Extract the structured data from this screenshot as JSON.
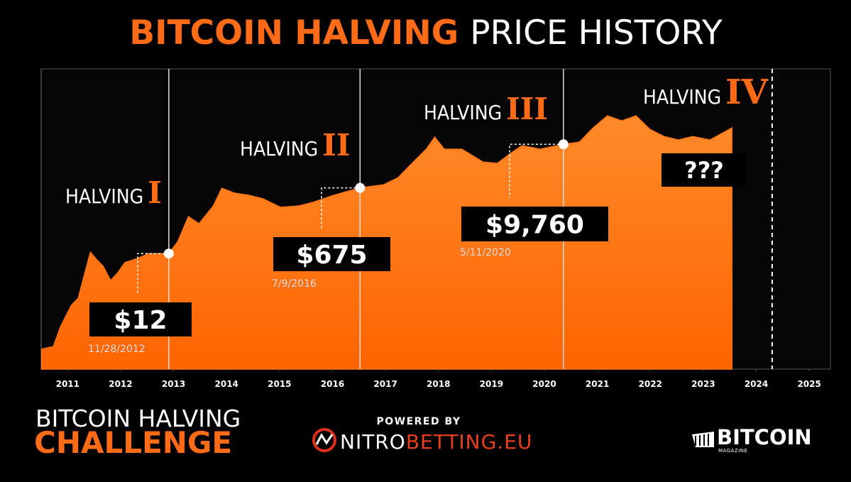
{
  "chart_data": {
    "type": "area",
    "title_bold": "BITCOIN HALVING",
    "title_rest": "PRICE HISTORY",
    "x": [
      2010.51,
      2010.73,
      2010.87,
      2011.07,
      2011.2,
      2011.34,
      2011.43,
      2011.54,
      2011.67,
      2011.81,
      2011.94,
      2012.08,
      2012.28,
      2012.54,
      2012.91,
      2013.08,
      2013.28,
      2013.48,
      2013.75,
      2013.91,
      2014.15,
      2014.42,
      2014.69,
      2015.02,
      2015.36,
      2015.63,
      2016.03,
      2016.52,
      2016.97,
      2017.24,
      2017.5,
      2017.77,
      2017.93,
      2018.11,
      2018.44,
      2018.84,
      2019.11,
      2019.38,
      2019.58,
      2019.92,
      2020.36,
      2020.66,
      2020.92,
      2021.19,
      2021.46,
      2021.73,
      2021.99,
      2022.26,
      2022.53,
      2022.8,
      2023.13,
      2023.54
    ],
    "values": [
      0.034,
      0.04,
      0.14,
      0.5,
      0.78,
      4.4,
      13,
      8.5,
      5.5,
      2.3,
      3.6,
      6.9,
      8.5,
      12,
      12,
      25,
      116,
      75,
      223,
      660,
      490,
      430,
      345,
      205,
      223,
      277,
      430,
      675,
      820,
      1270,
      3030,
      7250,
      15200,
      7250,
      7250,
      3310,
      3030,
      5830,
      9000,
      7250,
      9760,
      11200,
      26700,
      56100,
      41300,
      56100,
      24500,
      15800,
      12800,
      15800,
      12800,
      26700
    ],
    "color": "#ff7417",
    "log_scale": true,
    "xlim": [
      2010.5,
      2025.4
    ],
    "ylim": [
      0.01,
      1000000
    ],
    "xticks": [
      2011,
      2012,
      2013,
      2014,
      2015,
      2016,
      2017,
      2018,
      2019,
      2020,
      2021,
      2022,
      2023,
      2024,
      2025
    ],
    "halvings": [
      {
        "name": "HALVING",
        "numeral": "I",
        "x": 2012.91,
        "value": 12,
        "value_label": "$12",
        "date": "11/28/2012"
      },
      {
        "name": "HALVING",
        "numeral": "II",
        "x": 2016.52,
        "value": 675,
        "value_label": "$675",
        "date": "7/9/2016"
      },
      {
        "name": "HALVING",
        "numeral": "III",
        "x": 2020.36,
        "value": 9760,
        "value_label": "$9,760",
        "date": "5/11/2020"
      },
      {
        "name": "HALVING",
        "numeral": "IV",
        "x": 2024.3,
        "value_label": "???"
      }
    ]
  },
  "footer": {
    "challenge_line1": "BITCOIN HALVING",
    "challenge_line2": "CHALLENGE",
    "powered_by": "POWERED BY",
    "sponsor_part1": "NITRO",
    "sponsor_part2": "BETTING.EU",
    "brand": "BITCOIN",
    "brand_sub": "MAGAZINE"
  }
}
